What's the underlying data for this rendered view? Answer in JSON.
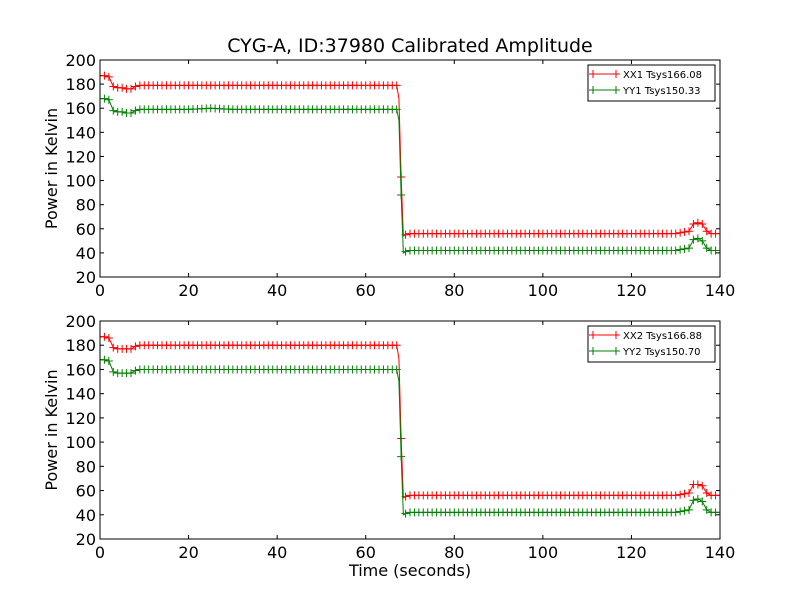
{
  "figure": {
    "title": "CYG-A, ID:37980 Calibrated Amplitude"
  },
  "chart_data": [
    {
      "type": "line",
      "title": "CYG-A, ID:37980 Calibrated Amplitude",
      "xlabel": "",
      "ylabel": "Power in Kelvin",
      "xlim": [
        0,
        140
      ],
      "ylim": [
        20,
        200
      ],
      "xticks": [
        "0",
        "20",
        "40",
        "60",
        "80",
        "100",
        "120",
        "140"
      ],
      "yticks": [
        "20",
        "40",
        "60",
        "80",
        "100",
        "120",
        "140",
        "160",
        "180",
        "200"
      ],
      "grid": false,
      "legend_position": "top-right",
      "marker": "+",
      "series": [
        {
          "name": "XX1 Tsys166.08",
          "color": "#ff0000",
          "x": [
            0,
            1,
            2,
            3,
            4,
            5,
            6,
            7,
            8,
            9,
            10,
            12,
            15,
            20,
            25,
            30,
            35,
            40,
            45,
            50,
            55,
            60,
            65,
            67,
            67.5,
            68,
            68.5,
            69,
            70,
            72,
            75,
            80,
            90,
            100,
            110,
            120,
            130,
            133,
            134,
            135,
            136,
            137,
            138,
            139,
            140
          ],
          "y": [
            187,
            187,
            186,
            178,
            177,
            177,
            176,
            176,
            178,
            179,
            179,
            179,
            179,
            179,
            179,
            179,
            179,
            179,
            179,
            179,
            179,
            179,
            179,
            179,
            168,
            103,
            54,
            55,
            56,
            56,
            56,
            56,
            56,
            56,
            56,
            56,
            56,
            58,
            64,
            65,
            64,
            58,
            56,
            56,
            56
          ]
        },
        {
          "name": "YY1 Tsys150.33",
          "color": "#008000",
          "x": [
            0,
            1,
            2,
            3,
            4,
            5,
            6,
            7,
            8,
            9,
            10,
            12,
            15,
            20,
            25,
            30,
            35,
            40,
            45,
            50,
            55,
            60,
            65,
            67,
            67.5,
            68,
            68.5,
            69,
            70,
            72,
            75,
            80,
            90,
            100,
            110,
            120,
            130,
            133,
            134,
            135,
            136,
            137,
            138,
            139,
            140
          ],
          "y": [
            168,
            168,
            167,
            158,
            157,
            157,
            156,
            156,
            158,
            159,
            159,
            159,
            159,
            159,
            160,
            159,
            159,
            159,
            159,
            159,
            159,
            159,
            159,
            159,
            150,
            88,
            40,
            41,
            42,
            42,
            42,
            42,
            42,
            42,
            42,
            42,
            42,
            44,
            51,
            52,
            50,
            44,
            42,
            42,
            42
          ]
        }
      ]
    },
    {
      "type": "line",
      "title": "",
      "xlabel": "Time (seconds)",
      "ylabel": "Power in Kelvin",
      "xlim": [
        0,
        140
      ],
      "ylim": [
        20,
        200
      ],
      "xticks": [
        "0",
        "20",
        "40",
        "60",
        "80",
        "100",
        "120",
        "140"
      ],
      "yticks": [
        "20",
        "40",
        "60",
        "80",
        "100",
        "120",
        "140",
        "160",
        "180",
        "200"
      ],
      "grid": false,
      "legend_position": "top-right",
      "marker": "+",
      "series": [
        {
          "name": "XX2 Tsys166.88",
          "color": "#ff0000",
          "x": [
            0,
            1,
            2,
            3,
            4,
            5,
            6,
            7,
            8,
            9,
            10,
            12,
            15,
            20,
            25,
            30,
            35,
            40,
            45,
            50,
            55,
            60,
            65,
            67,
            67.5,
            68,
            68.5,
            69,
            70,
            72,
            75,
            80,
            90,
            100,
            110,
            120,
            130,
            133,
            134,
            135,
            136,
            137,
            138,
            139,
            140
          ],
          "y": [
            187,
            187,
            186,
            178,
            177,
            177,
            177,
            177,
            179,
            180,
            180,
            180,
            180,
            180,
            180,
            180,
            180,
            180,
            180,
            180,
            180,
            180,
            180,
            180,
            169,
            103,
            54,
            55,
            56,
            56,
            56,
            56,
            56,
            56,
            56,
            56,
            56,
            58,
            65,
            65,
            64,
            58,
            56,
            56,
            56
          ]
        },
        {
          "name": "YY2 Tsys150.70",
          "color": "#008000",
          "x": [
            0,
            1,
            2,
            3,
            4,
            5,
            6,
            7,
            8,
            9,
            10,
            12,
            15,
            20,
            25,
            30,
            35,
            40,
            45,
            50,
            55,
            60,
            65,
            67,
            67.5,
            68,
            68.5,
            69,
            70,
            72,
            75,
            80,
            90,
            100,
            110,
            120,
            130,
            133,
            134,
            135,
            136,
            137,
            138,
            139,
            140
          ],
          "y": [
            168,
            168,
            167,
            158,
            157,
            157,
            157,
            157,
            159,
            160,
            160,
            160,
            160,
            160,
            160,
            160,
            160,
            160,
            160,
            160,
            160,
            160,
            160,
            160,
            150,
            88,
            40,
            41,
            42,
            42,
            42,
            42,
            42,
            42,
            42,
            42,
            42,
            44,
            52,
            53,
            51,
            44,
            42,
            42,
            42
          ]
        }
      ]
    }
  ]
}
